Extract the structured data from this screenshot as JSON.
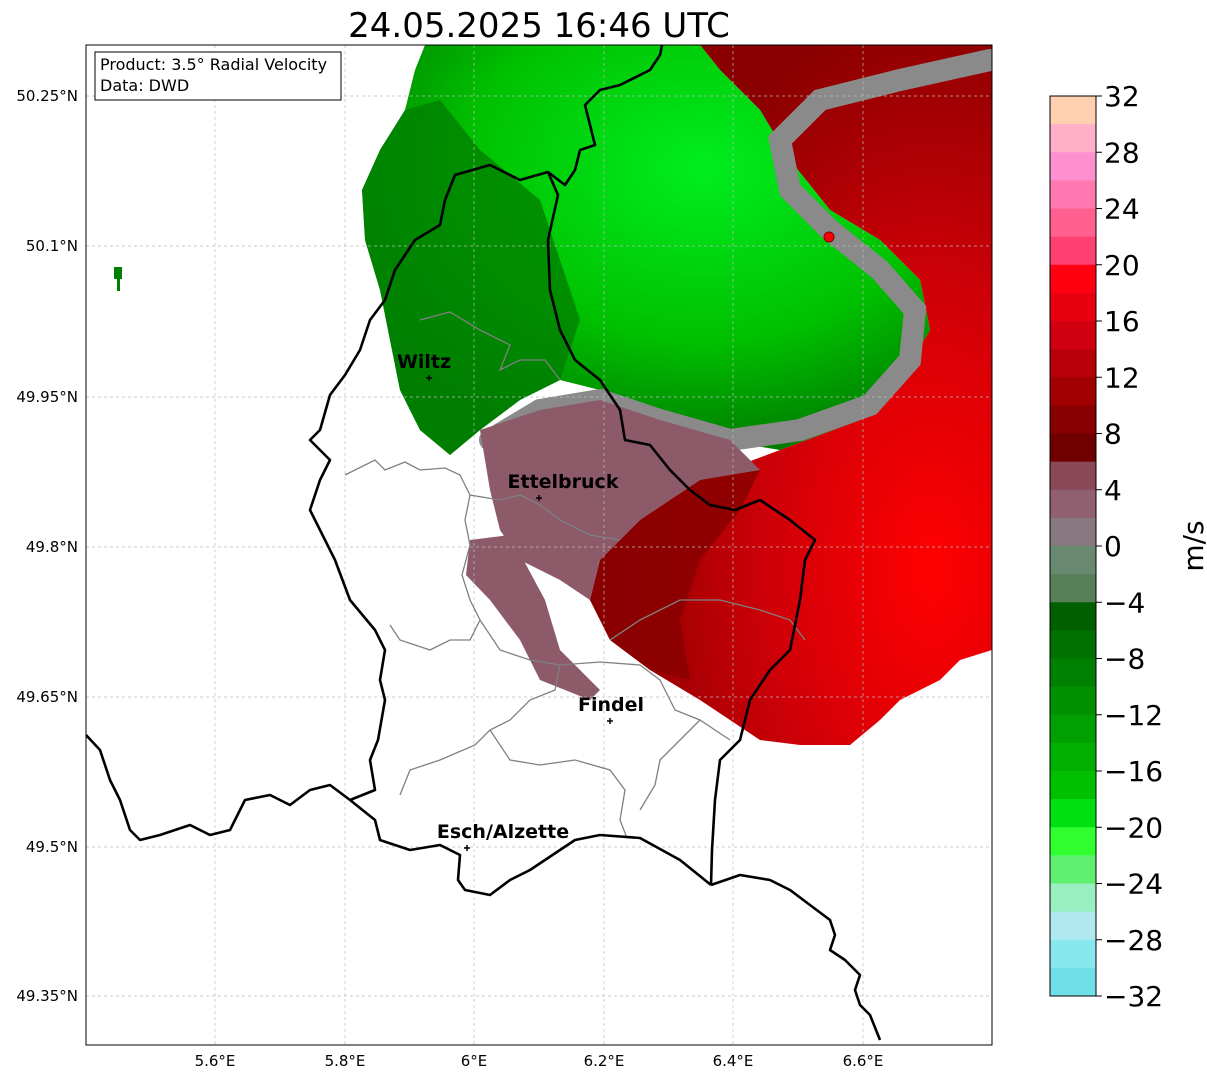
{
  "title": "24.05.2025 16:46 UTC",
  "info": {
    "product": "Product: 3.5° Radial Velocity",
    "source": "Data: DWD"
  },
  "axes": {
    "lat_ticks": [
      "50.25°N",
      "50.1°N",
      "49.95°N",
      "49.8°N",
      "49.65°N",
      "49.5°N",
      "49.35°N"
    ],
    "lon_ticks": [
      "5.6°E",
      "5.8°E",
      "6°E",
      "6.2°E",
      "6.4°E",
      "6.6°E"
    ]
  },
  "cities": [
    {
      "name": "Wiltz"
    },
    {
      "name": "Ettelbruck"
    },
    {
      "name": "Findel"
    },
    {
      "name": "Esch/Alzette"
    }
  ],
  "colorbar": {
    "unit": "m/s",
    "ticks": [
      "32",
      "28",
      "24",
      "20",
      "16",
      "12",
      "8",
      "4",
      "0",
      "−4",
      "−8",
      "−12",
      "−16",
      "−20",
      "−24",
      "−28",
      "−32"
    ],
    "colors": [
      "#ffd0b0",
      "#ffb0c8",
      "#ff90d0",
      "#ff78b0",
      "#ff6090",
      "#ff4070",
      "#ff0010",
      "#e80010",
      "#d00010",
      "#b80008",
      "#a00000",
      "#880000",
      "#700000",
      "#884858",
      "#906070",
      "#887880",
      "#688870",
      "#588058",
      "#006000",
      "#007000",
      "#008000",
      "#009000",
      "#00a000",
      "#00b000",
      "#00c000",
      "#00e010",
      "#30ff30",
      "#60f070",
      "#98f0c0",
      "#b0e8f0",
      "#88e8ee",
      "#70e0e8"
    ]
  }
}
